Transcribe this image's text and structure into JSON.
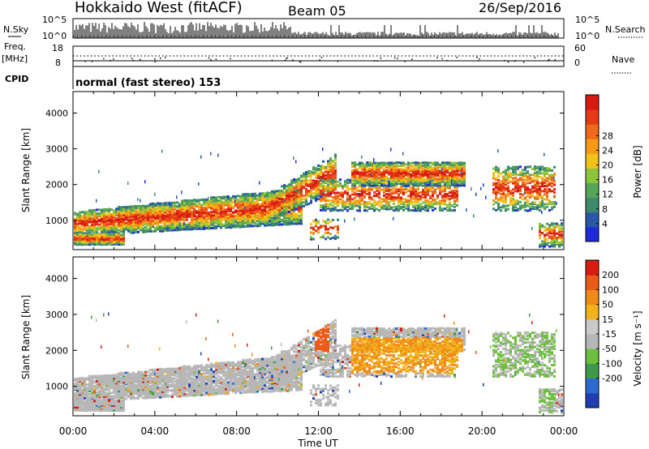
{
  "header": {
    "title": "Hokkaido West (fitACF)",
    "beam": "Beam 05",
    "date": "26/Sep/2016"
  },
  "noise_panel": {
    "left_label": "N.Sky",
    "right_label": "N.Search",
    "ticks": [
      "10^5",
      "10^0"
    ]
  },
  "freq_panel": {
    "left_label_1": "Freq.",
    "left_label_2": "[MHz]",
    "left_ticks": [
      "18",
      "8"
    ],
    "right_label": "Nave",
    "right_ticks": [
      "60",
      "0"
    ]
  },
  "cpid": {
    "label": "CPID",
    "value": "normal (fast stereo) 153"
  },
  "chart_data": [
    {
      "type": "heatmap",
      "ylabel": "Slant Range [km]",
      "yticks": [
        1000,
        2000,
        3000,
        4000
      ],
      "xticks": [
        "00:00",
        "04:00",
        "08:00",
        "12:00",
        "16:00",
        "20:00",
        "00:00"
      ],
      "xlabel": "Time UT",
      "colorbar": {
        "label": "Power [dB]",
        "ticks": [
          "4",
          "8",
          "12",
          "16",
          "20",
          "24",
          "28"
        ],
        "colors": [
          "#1f2bd8",
          "#2a57a8",
          "#3d8a6c",
          "#56a35a",
          "#8cc43c",
          "#f2c21a",
          "#f59a18",
          "#ee6a1a",
          "#e43b16",
          "#d81a12"
        ]
      }
    },
    {
      "type": "heatmap",
      "ylabel": "Slant Range [km]",
      "yticks": [
        1000,
        2000,
        3000,
        4000
      ],
      "xticks": [
        "00:00",
        "04:00",
        "08:00",
        "12:00",
        "16:00",
        "20:00",
        "00:00"
      ],
      "xlabel": "Time UT",
      "colorbar": {
        "label": "Velocity [m s⁻¹]",
        "ticks": [
          "200",
          "100",
          "50",
          "15",
          "-15",
          "-50",
          "-100",
          "-200"
        ],
        "colors": [
          "#1f3fb0",
          "#2d6ad0",
          "#3e9a4a",
          "#6dbf3e",
          "#b7b7b7",
          "#c9c9c9",
          "#f1b21c",
          "#f08a1a",
          "#ea5a18",
          "#d91c12"
        ]
      }
    }
  ]
}
